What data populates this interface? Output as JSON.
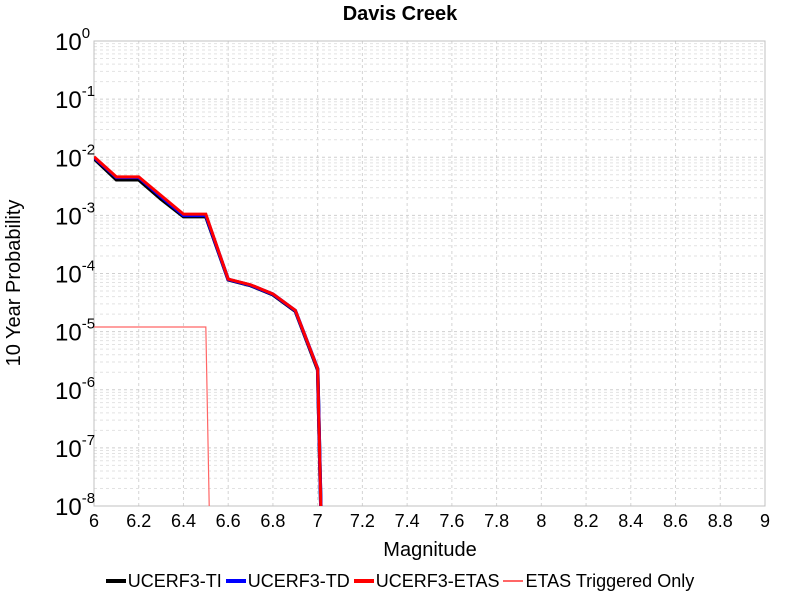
{
  "chart_data": {
    "type": "line",
    "title": "Davis Creek",
    "xlabel": "Magnitude",
    "ylabel": "10 Year Probability",
    "xlim": [
      6,
      9
    ],
    "ylim": [
      1e-08,
      1
    ],
    "yscale": "log",
    "grid": true,
    "legend_position": "bottom",
    "x_ticks": [
      "6",
      "6.2",
      "6.4",
      "6.6",
      "6.8",
      "7",
      "7.2",
      "7.4",
      "7.6",
      "7.8",
      "8",
      "8.2",
      "8.4",
      "8.6",
      "8.8",
      "9"
    ],
    "y_ticks": [
      {
        "base": "10",
        "exp": "0"
      },
      {
        "base": "10",
        "exp": "-1"
      },
      {
        "base": "10",
        "exp": "-2"
      },
      {
        "base": "10",
        "exp": "-3"
      },
      {
        "base": "10",
        "exp": "-4"
      },
      {
        "base": "10",
        "exp": "-5"
      },
      {
        "base": "10",
        "exp": "-6"
      },
      {
        "base": "10",
        "exp": "-7"
      },
      {
        "base": "10",
        "exp": "-8"
      }
    ],
    "series": [
      {
        "name": "UCERF3-TI",
        "color": "#000000",
        "x": [
          6.0,
          6.1,
          6.2,
          6.3,
          6.4,
          6.5,
          6.6,
          6.7,
          6.8,
          6.9,
          7.0,
          7.02
        ],
        "y": [
          0.0095,
          0.0041,
          0.0041,
          0.0019,
          0.00095,
          0.00095,
          7.8e-05,
          6.2e-05,
          4.3e-05,
          2.25e-05,
          2.2e-06,
          1e-09
        ]
      },
      {
        "name": "UCERF3-TD",
        "color": "#0000ff",
        "x": [
          6.0,
          6.1,
          6.2,
          6.3,
          6.4,
          6.5,
          6.6,
          6.7,
          6.8,
          6.9,
          7.0,
          7.02
        ],
        "y": [
          0.01,
          0.0045,
          0.0045,
          0.0021,
          0.001,
          0.001,
          7.9e-05,
          6.3e-05,
          4.4e-05,
          2.3e-05,
          2.3e-06,
          1e-09
        ]
      },
      {
        "name": "UCERF3-ETAS",
        "color": "#ff0000",
        "x": [
          6.0,
          6.1,
          6.2,
          6.3,
          6.4,
          6.5,
          6.6,
          6.7,
          6.8,
          6.9,
          7.0,
          7.02
        ],
        "y": [
          0.0102,
          0.0046,
          0.0046,
          0.0022,
          0.00105,
          0.00105,
          8e-05,
          6.4e-05,
          4.45e-05,
          2.33e-05,
          2.3e-06,
          1e-09
        ]
      },
      {
        "name": "ETAS Triggered Only",
        "color": "#ff6666",
        "x": [
          6.0,
          6.1,
          6.2,
          6.3,
          6.4,
          6.5,
          6.52
        ],
        "y": [
          1.2e-05,
          1.2e-05,
          1.2e-05,
          1.2e-05,
          1.2e-05,
          1.2e-05,
          1e-09
        ]
      }
    ]
  }
}
